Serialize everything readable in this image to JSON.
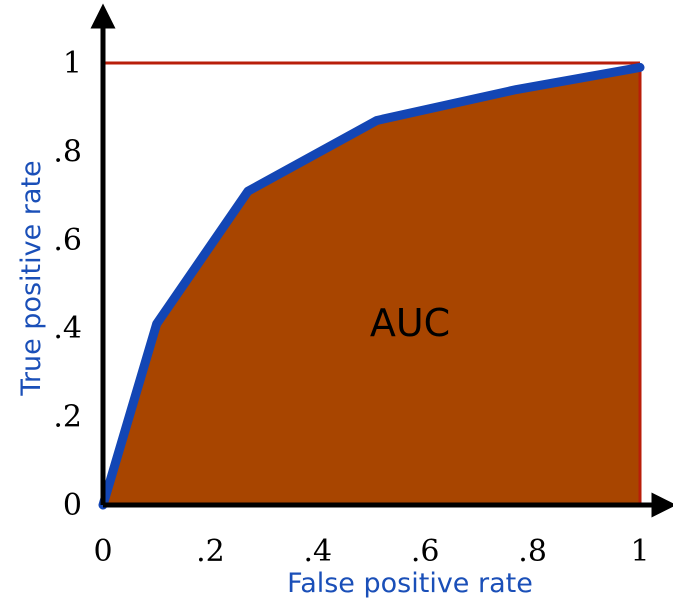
{
  "chart_data": {
    "type": "area",
    "xlabel": "False positive rate",
    "ylabel": "True positive rate",
    "xlim": [
      0,
      1
    ],
    "ylim": [
      0,
      1
    ],
    "x_ticks": [
      {
        "value": 0,
        "label": "0"
      },
      {
        "value": 0.2,
        "label": ".2"
      },
      {
        "value": 0.4,
        "label": ".4"
      },
      {
        "value": 0.6,
        "label": ".6"
      },
      {
        "value": 0.8,
        "label": ".8"
      },
      {
        "value": 1,
        "label": "1"
      }
    ],
    "y_ticks": [
      {
        "value": 0,
        "label": "0"
      },
      {
        "value": 0.2,
        "label": ".2"
      },
      {
        "value": 0.4,
        "label": ".4"
      },
      {
        "value": 0.6,
        "label": ".6"
      },
      {
        "value": 0.8,
        "label": ".8"
      },
      {
        "value": 1,
        "label": "1"
      }
    ],
    "series": [
      {
        "x": [
          0,
          0.1,
          0.27,
          0.51,
          0.77,
          1.0
        ],
        "y": [
          0,
          0.41,
          0.71,
          0.87,
          0.94,
          0.99
        ]
      }
    ],
    "reference_box": {
      "x": [
        0,
        1
      ],
      "y": [
        0,
        1
      ]
    },
    "annotation": "AUC",
    "grid": false,
    "colors": {
      "curve": "#1346b5",
      "area_fill": "#a84500",
      "reference": "#b81e0a",
      "axis": "#000000",
      "axis_label": "#1a4fb8"
    }
  }
}
